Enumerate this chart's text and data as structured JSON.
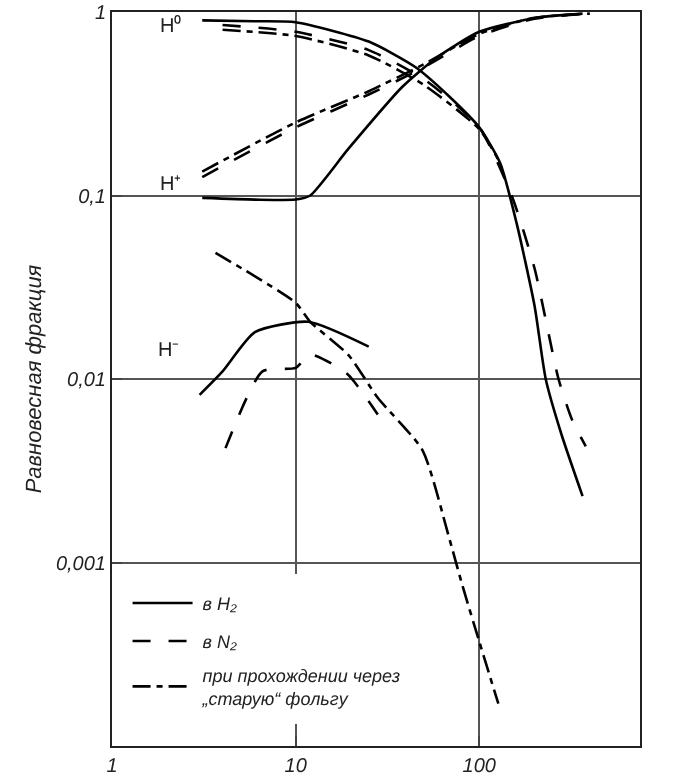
{
  "chart_data": {
    "type": "line",
    "ylabel": "Равновесная фракция",
    "log": "xy",
    "grid": true,
    "legend": "bottom left",
    "marker": "none",
    "xlim": [
      1,
      750
    ],
    "ylim": [
      0.0001,
      1
    ],
    "xticks": [
      1,
      10,
      100
    ],
    "yticks": [
      {
        "value": 0.0001,
        "label": null
      },
      {
        "value": 0.001,
        "label": "0,001"
      },
      {
        "value": 0.01,
        "label": "0,01"
      },
      {
        "value": 0.1,
        "label": "0,1"
      },
      1
    ],
    "annotations": [
      "H⁰",
      "H⁺",
      "H⁻"
    ],
    "series": [
      {
        "name": "в H₂",
        "color": "#000000",
        "line_style": "solid",
        "x": [
          3.1,
          6,
          10,
          25,
          45,
          70,
          100,
          130,
          160,
          200,
          230,
          280,
          365
        ],
        "values": [
          0.9,
          0.89,
          0.88,
          0.69,
          0.5,
          0.34,
          0.235,
          0.15,
          0.07,
          0.025,
          0.01,
          0.005,
          0.0023
        ]
      },
      {
        "name": "в N₂",
        "color": "#000000",
        "line_style": "dashed",
        "x": [
          4,
          10,
          25,
          50,
          100,
          150,
          200,
          270,
          320,
          380
        ],
        "values": [
          0.85,
          0.78,
          0.62,
          0.43,
          0.235,
          0.1,
          0.04,
          0.01,
          0.006,
          0.0043
        ]
      },
      {
        "name": "при прохождении через „старую“ фольгу",
        "color": "#000000",
        "line_style": "dashdot",
        "x": [
          4,
          10,
          25,
          50,
          100,
          130
        ],
        "values": [
          0.8,
          0.74,
          0.58,
          0.4,
          0.23,
          0.15
        ]
      },
      {
        "color": "#000000",
        "line_style": "solid",
        "x": [
          3.1,
          6,
          10,
          12,
          19.4,
          38,
          58,
          100,
          205,
          365
        ],
        "values": [
          0.097,
          0.095,
          0.095,
          0.1,
          0.18,
          0.39,
          0.56,
          0.78,
          0.93,
          0.98
        ]
      },
      {
        "color": "#000000",
        "line_style": "dashed",
        "x": [
          3.1,
          10,
          25,
          50,
          100,
          200,
          400
        ],
        "values": [
          0.126,
          0.235,
          0.355,
          0.5,
          0.74,
          0.92,
          0.98
        ]
      },
      {
        "color": "#000000",
        "line_style": "dashdot",
        "x": [
          3.1,
          10,
          25,
          50,
          100,
          200,
          400
        ],
        "values": [
          0.135,
          0.25,
          0.37,
          0.52,
          0.76,
          0.93,
          0.98
        ]
      },
      {
        "color": "#000000",
        "line_style": "solid",
        "x": [
          3.0,
          4,
          6,
          11.7,
          25
        ],
        "values": [
          0.0082,
          0.011,
          0.018,
          0.0205,
          0.015
        ]
      },
      {
        "color": "#000000",
        "line_style": "dashed",
        "x": [
          4.15,
          6.6,
          10,
          12,
          19,
          28
        ],
        "values": [
          0.0042,
          0.011,
          0.0115,
          0.0136,
          0.0107,
          0.0064
        ]
      },
      {
        "color": "#000000",
        "line_style": "dashdot",
        "x": [
          3.66,
          10,
          12,
          19.4,
          28,
          49,
          68,
          80,
          100,
          127
        ],
        "values": [
          0.0487,
          0.026,
          0.0205,
          0.0135,
          0.0079,
          0.0041,
          0.0014,
          0.00078,
          0.00037,
          0.00017
        ]
      }
    ]
  }
}
